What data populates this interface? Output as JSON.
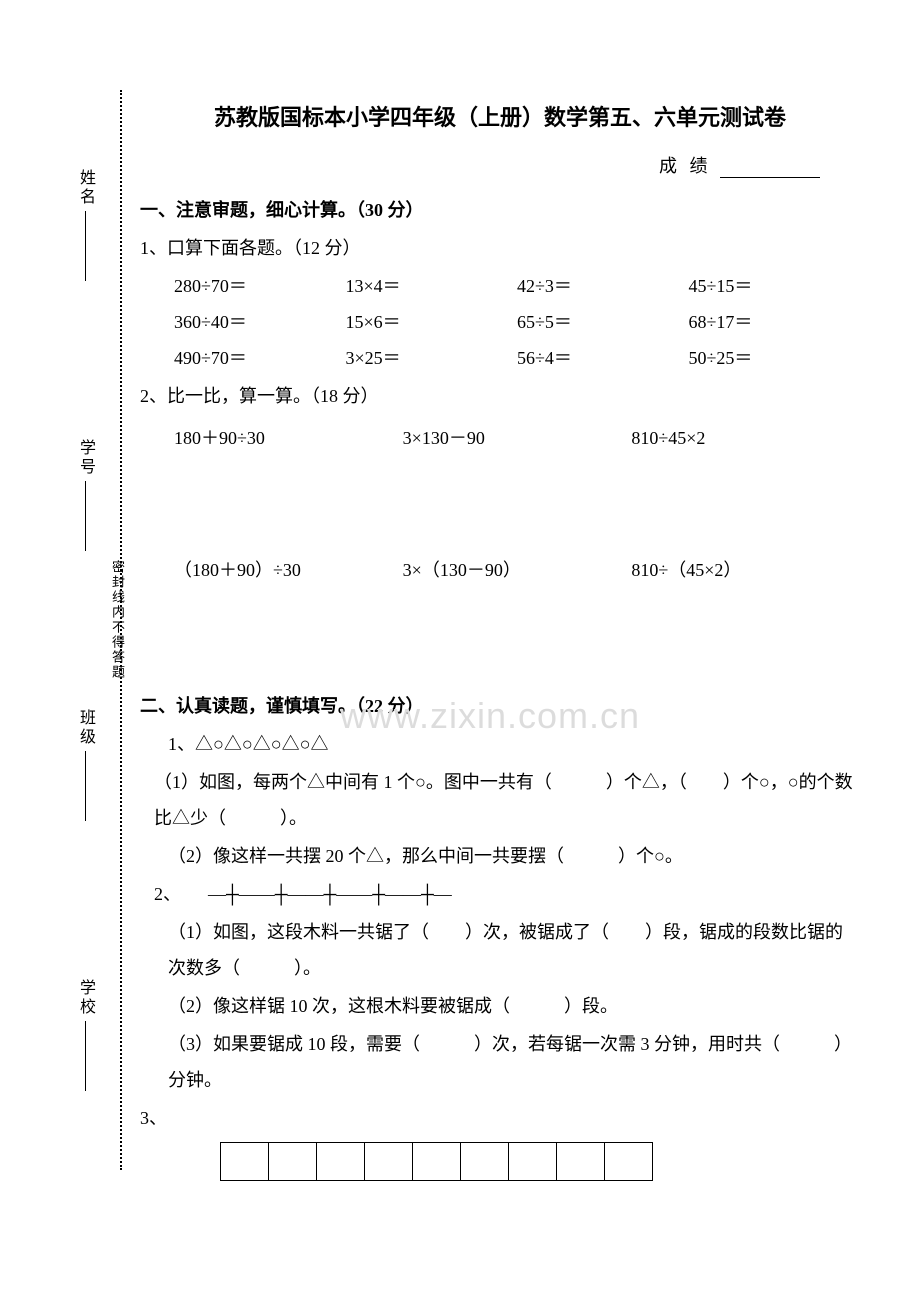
{
  "sidebar": {
    "fields": [
      "姓名",
      "学号",
      "班级",
      "学校"
    ],
    "seal_note": "密封线内不得答题"
  },
  "header": {
    "title": "苏教版国标本小学四年级（上册）数学第五、六单元测试卷",
    "score_label": "成 绩"
  },
  "watermark": "www.zixin.com.cn",
  "section1": {
    "title": "一、注意审题，细心计算。（30 分）",
    "q1_title": "1、口算下面各题。（12 分）",
    "rows": [
      [
        "280÷70＝",
        "13×4＝",
        "42÷3＝",
        "45÷15＝"
      ],
      [
        "360÷40＝",
        "15×6＝",
        "65÷5＝",
        "68÷17＝"
      ],
      [
        "490÷70＝",
        "3×25＝",
        "56÷4＝",
        "50÷25＝"
      ]
    ],
    "q2_title": "2、比一比，算一算。（18 分）",
    "row2a": [
      "180＋90÷30",
      "3×130－90",
      "810÷45×2"
    ],
    "row2b": [
      "（180＋90）÷30",
      "3×（130－90）",
      "810÷（45×2）"
    ]
  },
  "section2": {
    "title": "二、认真读题，谨慎填写。（22 分）",
    "q1_shapes": "1、△○△○△○△○△",
    "q1_1": "（1）如图，每两个△中间有 1 个○。图中一共有（　　　）个△，（　　）个○，○的个数比△少（　　　）。",
    "q1_2": "（2）像这样一共摆 20 个△，那么中间一共要摆（　　　）个○。",
    "q2_shapes": "2、　　—┼——┼——┼——┼——┼—",
    "q2_1": "（1）如图，这段木料一共锯了（　　）次，被锯成了（　　）段，锯成的段数比锯的次数多（　　　）。",
    "q2_2": "（2）像这样锯 10 次，这根木料要被锯成（　　　）段。",
    "q2_3": "（3）如果要锯成 10 段，需要（　　　）次，若每锯一次需 3 分钟，用时共（　　　）分钟。",
    "q3_label": "3、",
    "q3_cols": 9
  }
}
